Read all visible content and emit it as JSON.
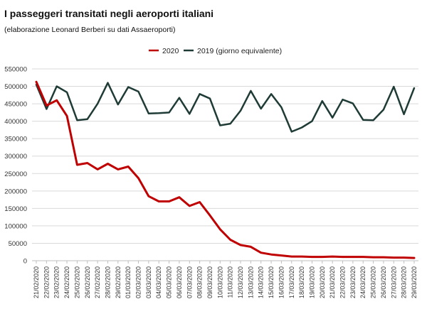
{
  "chart_data": {
    "type": "line",
    "title": "I passeggeri transitati negli aeroporti italiani",
    "subtitle": "(elaborazione Leonard Berberi su dati Assaeroporti)",
    "xlabel": "",
    "ylabel": "",
    "ylim": [
      0,
      550000
    ],
    "yticks": [
      0,
      50000,
      100000,
      150000,
      200000,
      250000,
      300000,
      350000,
      400000,
      450000,
      500000,
      550000
    ],
    "ytick_labels": [
      "0",
      "50000",
      "100000",
      "150000",
      "200000",
      "250000",
      "300000",
      "350000",
      "400000",
      "450000",
      "500000",
      "550000"
    ],
    "grid": "horizontal",
    "legend_position": "top",
    "categories": [
      "21/02/2020",
      "22/02/2020",
      "23/02/2020",
      "24/02/2020",
      "25/02/2020",
      "26/02/2020",
      "27/02/2020",
      "28/02/2020",
      "29/02/2020",
      "01/03/2020",
      "02/03/2020",
      "03/03/2020",
      "04/03/2020",
      "05/03/2020",
      "06/03/2020",
      "07/03/2020",
      "08/03/2020",
      "09/03/2020",
      "10/03/2020",
      "11/03/2020",
      "12/03/2020",
      "13/03/2020",
      "14/03/2020",
      "15/03/2020",
      "16/03/2020",
      "17/03/2020",
      "18/03/2020",
      "19/03/2020",
      "20/03/2020",
      "21/03/2020",
      "22/03/2020",
      "23/03/2020",
      "24/03/2020",
      "25/03/2020",
      "26/03/2020",
      "27/03/2020",
      "28/03/2020",
      "29/03/2020"
    ],
    "series": [
      {
        "name": "2020",
        "color": "#c00000",
        "values": [
          513000,
          445000,
          460000,
          415000,
          275000,
          280000,
          262000,
          278000,
          262000,
          270000,
          237000,
          185000,
          170000,
          170000,
          182000,
          157000,
          168000,
          130000,
          90000,
          60000,
          45000,
          40000,
          23000,
          18000,
          15000,
          12000,
          12000,
          11000,
          11000,
          12000,
          11000,
          11000,
          11000,
          10000,
          10000,
          9000,
          9000,
          8000
        ]
      },
      {
        "name": "2019 (giorno equivalente)",
        "color": "#1f3b36",
        "values": [
          505000,
          435000,
          500000,
          483000,
          403000,
          406000,
          450000,
          510000,
          448000,
          498000,
          485000,
          422000,
          423000,
          425000,
          467000,
          421000,
          478000,
          465000,
          388000,
          393000,
          430000,
          487000,
          436000,
          478000,
          440000,
          370000,
          382000,
          400000,
          458000,
          410000,
          462000,
          451000,
          404000,
          403000,
          433000,
          499000,
          420000,
          495000
        ]
      }
    ]
  }
}
